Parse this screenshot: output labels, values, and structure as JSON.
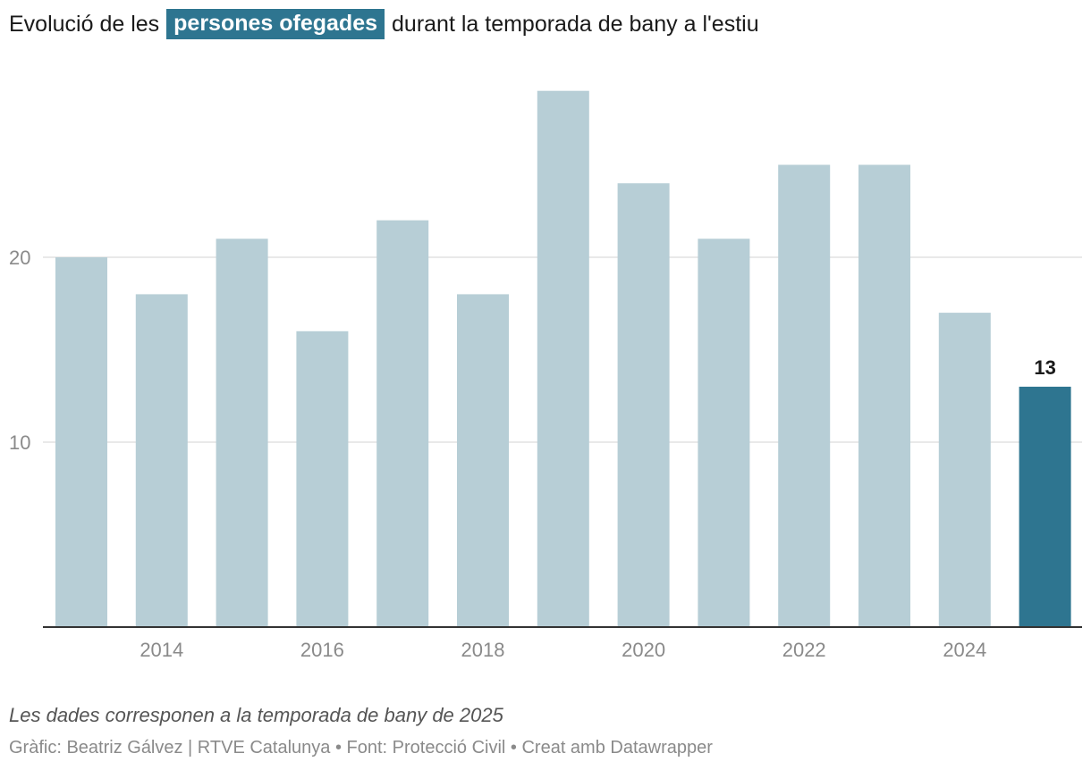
{
  "header": {
    "title_before": "Evolució de les",
    "title_highlight": "persones ofegades",
    "title_after": "durant la temporada de bany a l'estiu"
  },
  "chart_data": {
    "type": "bar",
    "categories": [
      "2013",
      "2014",
      "2015",
      "2016",
      "2017",
      "2018",
      "2019",
      "2020",
      "2021",
      "2022",
      "2023",
      "2024",
      "2025"
    ],
    "values": [
      20,
      18,
      21,
      16,
      22,
      18,
      29,
      24,
      21,
      25,
      25,
      17,
      13
    ],
    "x_tick_labels": [
      "2014",
      "2016",
      "2018",
      "2020",
      "2022",
      "2024"
    ],
    "y_ticks": [
      10,
      20
    ],
    "ylim": [
      0,
      30
    ],
    "grid": true,
    "highlighted_category": "2025",
    "highlighted_value_label": "13",
    "colors": {
      "bar": "#b7ced6",
      "highlight": "#2e7590",
      "grid": "#e2e2e2",
      "axis": "#333333",
      "tick_label": "#8a8a8a"
    }
  },
  "footer": {
    "notes": "Les dades corresponen a la temporada de bany de 2025",
    "byline": "Gràfic: Beatriz Gálvez | RTVE Catalunya • Font: Protecció Civil • Creat amb Datawrapper"
  }
}
